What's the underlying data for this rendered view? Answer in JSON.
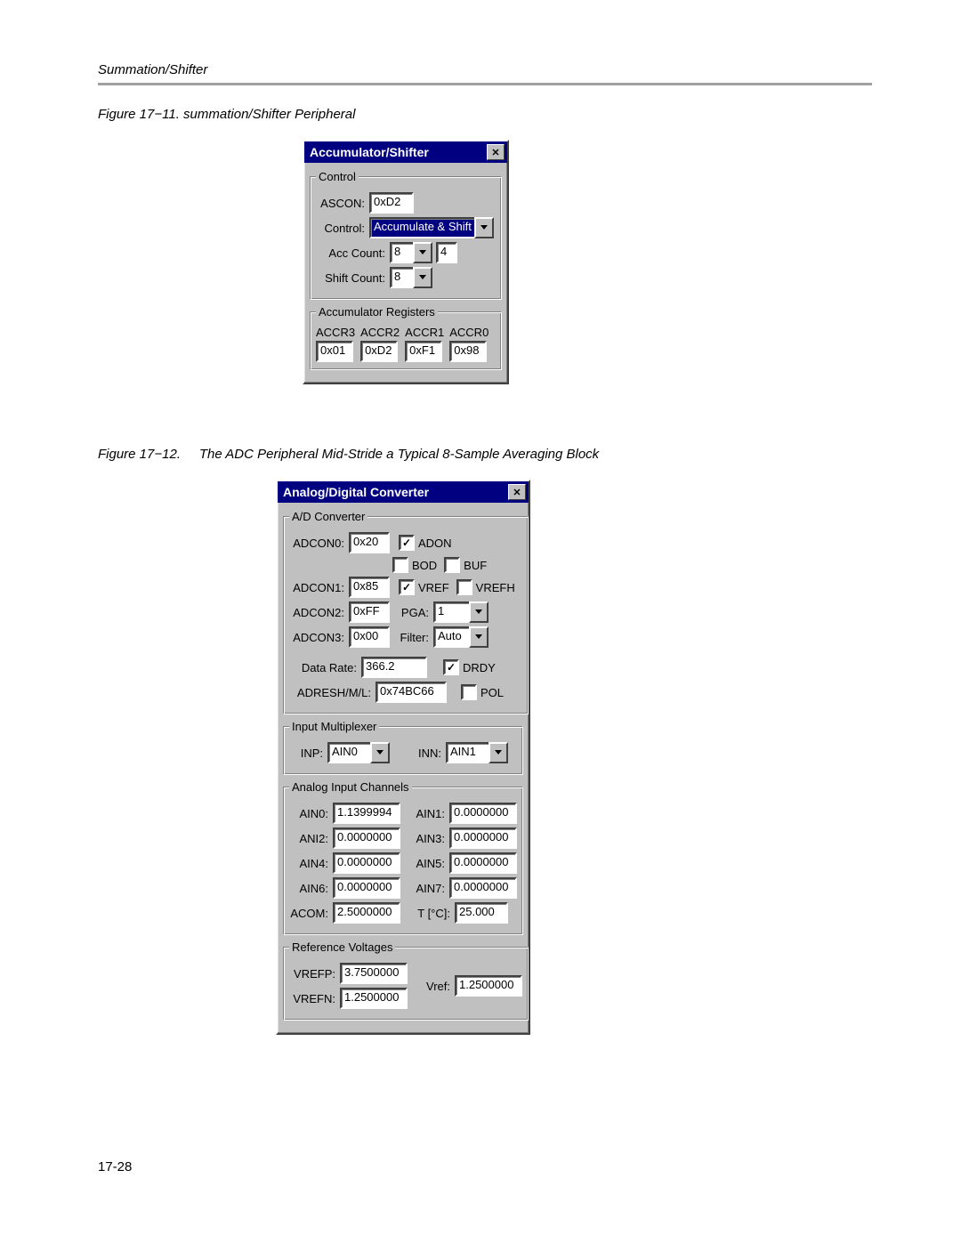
{
  "page": {
    "section_header": "Summation/Shifter",
    "page_number": "17-28"
  },
  "figure1": {
    "caption_num": "Figure 17−11.",
    "caption_text": "summation/Shifter Peripheral",
    "dialog": {
      "title": "Accumulator/Shifter",
      "control_group": {
        "legend": "Control",
        "ascon_label": "ASCON:",
        "ascon_value": "0xD2",
        "control_label": "Control:",
        "control_value": "Accumulate & Shift",
        "acc_count_label": "Acc Count:",
        "acc_count_value": "8",
        "acc_count_aux": "4",
        "shift_count_label": "Shift Count:",
        "shift_count_value": "8"
      },
      "registers_group": {
        "legend": "Accumulator Registers",
        "regs": [
          {
            "label": "ACCR3",
            "value": "0x01"
          },
          {
            "label": "ACCR2",
            "value": "0xD2"
          },
          {
            "label": "ACCR1",
            "value": "0xF1"
          },
          {
            "label": "ACCR0",
            "value": "0x98"
          }
        ]
      }
    }
  },
  "figure2": {
    "caption_num": "Figure 17−12.",
    "caption_text": "The ADC Peripheral Mid-Stride a Typical 8-Sample Averaging Block",
    "dialog": {
      "title": "Analog/Digital Converter",
      "adc_group": {
        "legend": "A/D Converter",
        "adcon0_label": "ADCON0:",
        "adcon0_value": "0x20",
        "adcon1_label": "ADCON1:",
        "adcon1_value": "0x85",
        "adcon2_label": "ADCON2:",
        "adcon2_value": "0xFF",
        "adcon3_label": "ADCON3:",
        "adcon3_value": "0x00",
        "adon_label": "ADON",
        "adon_checked": true,
        "bod_label": "BOD",
        "bod_checked": false,
        "buf_label": "BUF",
        "buf_checked": false,
        "vref_label": "VREF",
        "vref_checked": true,
        "vrefh_label": "VREFH",
        "vrefh_checked": false,
        "pga_label": "PGA:",
        "pga_value": "1",
        "filter_label": "Filter:",
        "filter_value": "Auto",
        "datarate_label": "Data Rate:",
        "datarate_value": "366.2",
        "drdy_label": "DRDY",
        "drdy_checked": true,
        "adresh_label": "ADRESH/M/L:",
        "adresh_value": "0x74BC66",
        "pol_label": "POL",
        "pol_checked": false
      },
      "mux_group": {
        "legend": "Input Multiplexer",
        "inp_label": "INP:",
        "inp_value": "AIN0",
        "inn_label": "INN:",
        "inn_value": "AIN1"
      },
      "ain_group": {
        "legend": "Analog Input Channels",
        "channels": [
          {
            "label": "AIN0:",
            "value": "1.1399994"
          },
          {
            "label": "AIN1:",
            "value": "0.0000000"
          },
          {
            "label": "ANI2:",
            "value": "0.0000000"
          },
          {
            "label": "AIN3:",
            "value": "0.0000000"
          },
          {
            "label": "AIN4:",
            "value": "0.0000000"
          },
          {
            "label": "AIN5:",
            "value": "0.0000000"
          },
          {
            "label": "AIN6:",
            "value": "0.0000000"
          },
          {
            "label": "AIN7:",
            "value": "0.0000000"
          }
        ],
        "acom_label": "ACOM:",
        "acom_value": "2.5000000",
        "temp_label": "T [°C]:",
        "temp_value": "25.000"
      },
      "ref_group": {
        "legend": "Reference Voltages",
        "vrefp_label": "VREFP:",
        "vrefp_value": "3.7500000",
        "vrefn_label": "VREFN:",
        "vrefn_value": "1.2500000",
        "vref_label": "Vref:",
        "vref_value": "1.2500000"
      }
    }
  },
  "style": {
    "titlebar_bg": "#000080",
    "titlebar_fg": "#ffffff",
    "dialog_bg": "#c0c0c0",
    "input_bg": "#ffffff",
    "selection_bg": "#000080",
    "selection_fg": "#ffffff",
    "page_bg": "#ffffff",
    "hr_color": "#a0a0a0",
    "font_body": "MS Sans Serif, Tahoma, Arial",
    "font_caption": "Arial italic 15px"
  }
}
